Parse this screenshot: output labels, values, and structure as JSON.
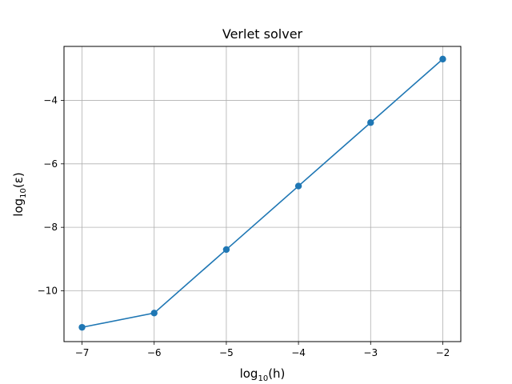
{
  "chart_data": {
    "type": "line",
    "title": "Verlet solver",
    "xlabel": {
      "base": "log",
      "subscript": "10",
      "arg": "(h)"
    },
    "ylabel": {
      "base": "log",
      "subscript": "10",
      "arg": "(ε)"
    },
    "xlim": [
      -7.25,
      -1.75
    ],
    "ylim": [
      -11.6,
      -2.3
    ],
    "xticks": [
      -7,
      -6,
      -5,
      -4,
      -3,
      -2
    ],
    "xtick_labels": [
      "−7",
      "−6",
      "−5",
      "−4",
      "−3",
      "−2"
    ],
    "yticks": [
      -10,
      -8,
      -6,
      -4
    ],
    "ytick_labels": [
      "−10",
      "−8",
      "−6",
      "−4"
    ],
    "grid": true,
    "series": [
      {
        "color": "#1f77b4",
        "markers": true,
        "x": [
          -7,
          -6,
          -5,
          -4,
          -3,
          -2
        ],
        "y": [
          -11.15,
          -10.7,
          -8.7,
          -6.7,
          -4.7,
          -2.7
        ]
      }
    ]
  }
}
